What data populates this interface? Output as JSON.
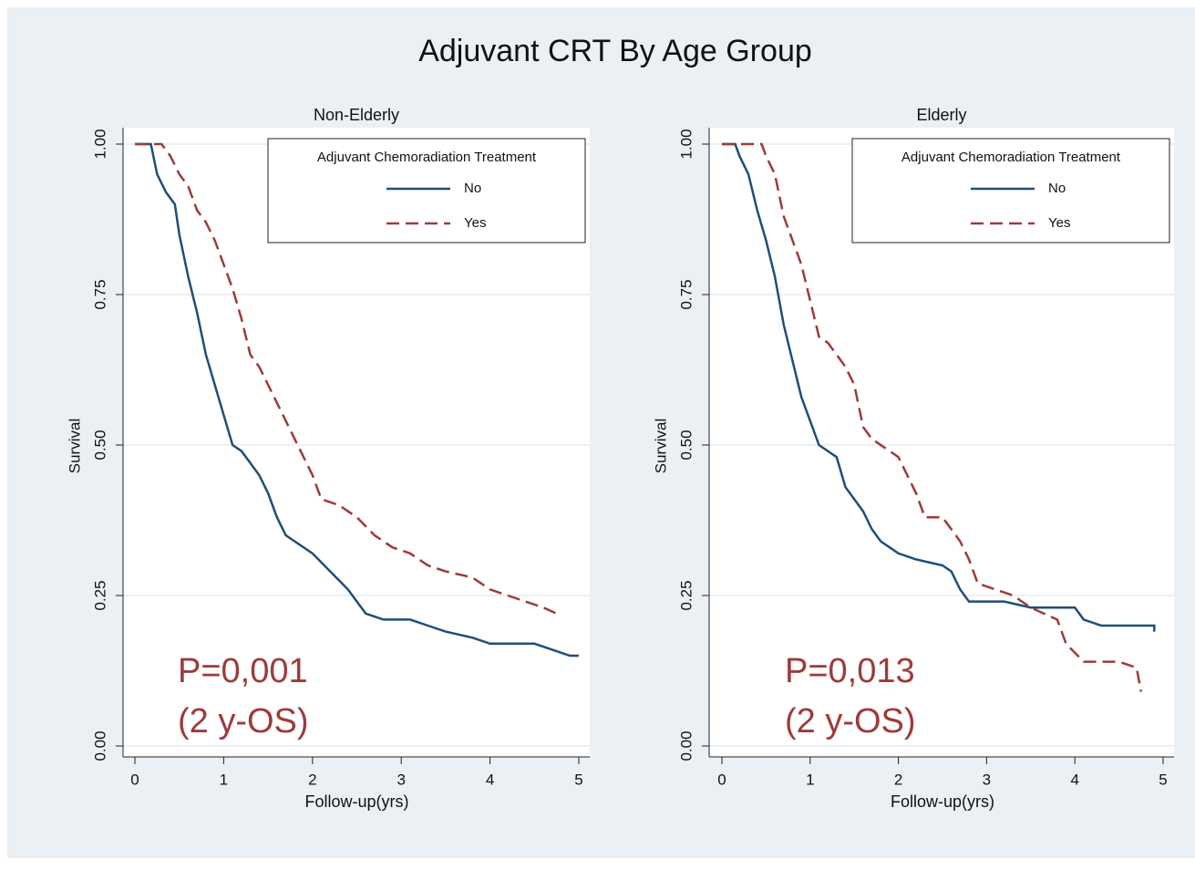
{
  "title": "Adjuvant CRT By Age Group",
  "chart_data": [
    {
      "type": "line",
      "title": "Non-Elderly",
      "ylabel": "Survival",
      "xlabel": "Follow-up(yrs)",
      "legend_title": "Adjuvant Chemoradiation Treatment",
      "legend": "upper right",
      "grid": true,
      "annotations": [
        "P=0,001",
        "(2 y-OS)"
      ],
      "xlim": [
        0,
        5
      ],
      "xticks": [
        0,
        1,
        2,
        3,
        4,
        5
      ],
      "ylim": [
        0,
        1
      ],
      "yticks": [
        {
          "value": 0,
          "label": "0.00"
        },
        0.25,
        {
          "value": 0.5,
          "label": "0.50"
        },
        0.75,
        {
          "value": 1,
          "label": "1.00"
        }
      ],
      "series": [
        {
          "name": "No",
          "color": "#1f4e79",
          "dash": false,
          "x": [
            0,
            0.18,
            0.25,
            0.35,
            0.45,
            0.5,
            0.6,
            0.7,
            0.8,
            0.9,
            1.0,
            1.1,
            1.2,
            1.3,
            1.4,
            1.5,
            1.6,
            1.7,
            1.8,
            2.0,
            2.2,
            2.4,
            2.6,
            2.8,
            3.1,
            3.3,
            3.5,
            3.8,
            4.0,
            4.5,
            4.7,
            4.9,
            5.0
          ],
          "values": [
            1,
            1,
            0.95,
            0.92,
            0.9,
            0.85,
            0.78,
            0.72,
            0.65,
            0.6,
            0.55,
            0.5,
            0.49,
            0.47,
            0.45,
            0.42,
            0.38,
            0.35,
            0.34,
            0.32,
            0.29,
            0.26,
            0.22,
            0.21,
            0.21,
            0.2,
            0.19,
            0.18,
            0.17,
            0.17,
            0.16,
            0.15,
            0.15
          ]
        },
        {
          "name": "Yes",
          "color": "#9e3a3a",
          "dash": true,
          "x": [
            0,
            0.3,
            0.4,
            0.5,
            0.6,
            0.7,
            0.8,
            0.9,
            1.0,
            1.1,
            1.2,
            1.3,
            1.4,
            1.5,
            1.6,
            1.7,
            1.8,
            1.9,
            2.0,
            2.1,
            2.3,
            2.5,
            2.7,
            2.9,
            3.1,
            3.3,
            3.5,
            3.8,
            4.0,
            4.2,
            4.4,
            4.6,
            4.75
          ],
          "values": [
            1,
            1,
            0.98,
            0.95,
            0.93,
            0.89,
            0.87,
            0.84,
            0.8,
            0.76,
            0.71,
            0.65,
            0.63,
            0.6,
            0.57,
            0.54,
            0.51,
            0.48,
            0.45,
            0.41,
            0.4,
            0.38,
            0.35,
            0.33,
            0.32,
            0.3,
            0.29,
            0.28,
            0.26,
            0.25,
            0.24,
            0.23,
            0.22
          ]
        }
      ]
    },
    {
      "type": "line",
      "title": "Elderly",
      "ylabel": "Survival",
      "xlabel": "Follow-up(yrs)",
      "legend_title": "Adjuvant Chemoradiation Treatment",
      "legend": "upper right",
      "grid": true,
      "annotations": [
        "P=0,013",
        "(2 y-OS)"
      ],
      "xlim": [
        0,
        5
      ],
      "xticks": [
        0,
        1,
        2,
        3,
        4,
        5
      ],
      "ylim": [
        0,
        1
      ],
      "yticks": [
        {
          "value": 0,
          "label": "0.00"
        },
        0.25,
        {
          "value": 0.5,
          "label": "0.50"
        },
        0.75,
        {
          "value": 1,
          "label": "1.00"
        }
      ],
      "series": [
        {
          "name": "No",
          "color": "#1f4e79",
          "dash": false,
          "x": [
            0,
            0.15,
            0.2,
            0.3,
            0.35,
            0.4,
            0.5,
            0.6,
            0.7,
            0.8,
            0.9,
            1.0,
            1.1,
            1.2,
            1.3,
            1.4,
            1.5,
            1.6,
            1.7,
            1.8,
            1.9,
            2.0,
            2.2,
            2.5,
            2.6,
            2.7,
            2.8,
            3.2,
            3.5,
            4.0,
            4.1,
            4.3,
            4.9,
            4.9
          ],
          "values": [
            1,
            1,
            0.98,
            0.95,
            0.92,
            0.89,
            0.84,
            0.78,
            0.7,
            0.64,
            0.58,
            0.54,
            0.5,
            0.49,
            0.48,
            0.43,
            0.41,
            0.39,
            0.36,
            0.34,
            0.33,
            0.32,
            0.31,
            0.3,
            0.29,
            0.26,
            0.24,
            0.24,
            0.23,
            0.23,
            0.21,
            0.2,
            0.2,
            0.19
          ]
        },
        {
          "name": "Yes",
          "color": "#9e3a3a",
          "dash": true,
          "x": [
            0,
            0.45,
            0.5,
            0.6,
            0.7,
            0.8,
            0.9,
            1.0,
            1.1,
            1.2,
            1.3,
            1.4,
            1.5,
            1.6,
            1.7,
            1.9,
            2.0,
            2.1,
            2.2,
            2.3,
            2.5,
            2.6,
            2.7,
            2.8,
            2.9,
            3.3,
            3.5,
            3.8,
            3.9,
            4.1,
            4.5,
            4.7,
            4.75
          ],
          "values": [
            1,
            1,
            0.98,
            0.95,
            0.88,
            0.84,
            0.8,
            0.74,
            0.68,
            0.67,
            0.65,
            0.63,
            0.6,
            0.53,
            0.51,
            0.49,
            0.48,
            0.45,
            0.42,
            0.38,
            0.38,
            0.36,
            0.34,
            0.31,
            0.27,
            0.25,
            0.23,
            0.21,
            0.17,
            0.14,
            0.14,
            0.13,
            0.09
          ]
        }
      ]
    }
  ]
}
